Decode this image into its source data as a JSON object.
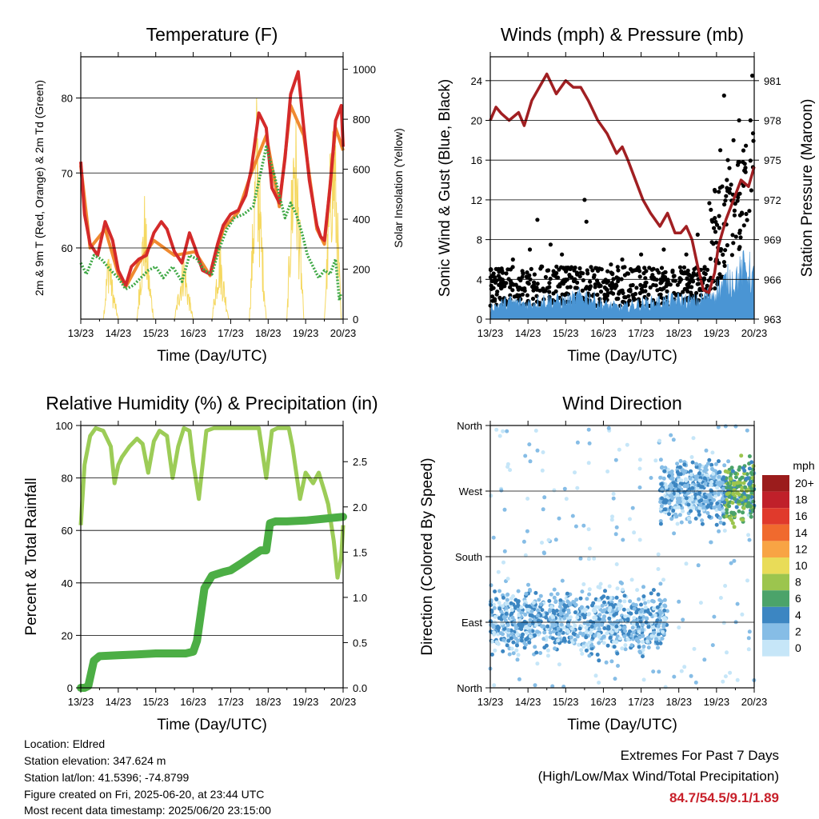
{
  "x_ticks": [
    "13/23",
    "14/23",
    "15/23",
    "16/23",
    "17/23",
    "18/23",
    "19/23",
    "20/23"
  ],
  "charts": {
    "temperature": {
      "title": "Temperature (F)",
      "xlabel": "Time (Day/UTC)",
      "ylabel_left": "2m & 9m T (Red, Orange) & 2m Td (Green)",
      "ylabel_right": "Solar Insolation (Yellow)",
      "yticks_left": [
        "60",
        "70",
        "80"
      ],
      "yticks_right": [
        "0",
        "200",
        "400",
        "600",
        "800",
        "1000"
      ]
    },
    "winds": {
      "title": "Winds (mph) & Pressure (mb)",
      "xlabel": "Time (Day/UTC)",
      "ylabel_left": "Sonic Wind & Gust (Blue, Black)",
      "ylabel_right": "Station Pressure (Maroon)",
      "yticks_left": [
        "0",
        "4",
        "8",
        "12",
        "16",
        "20",
        "24"
      ],
      "yticks_right": [
        "963",
        "966",
        "969",
        "972",
        "975",
        "978",
        "981"
      ]
    },
    "humidity": {
      "title": "Relative Humidity (%) & Precipitation (in)",
      "xlabel": "Time (Day/UTC)",
      "ylabel_left": "Percent & Total Rainfall",
      "yticks_left": [
        "0",
        "20",
        "40",
        "60",
        "80",
        "100"
      ],
      "yticks_right": [
        "0.0",
        "0.5",
        "1.0",
        "1.5",
        "2.0",
        "2.5"
      ]
    },
    "direction": {
      "title": "Wind Direction",
      "xlabel": "Time (Day/UTC)",
      "ylabel_left": "Direction (Colored By Speed)",
      "yticks_left": [
        "North",
        "East",
        "South",
        "West",
        "North"
      ],
      "legend_title": "mph",
      "legend_labels": [
        "20+",
        "18",
        "16",
        "14",
        "12",
        "10",
        "8",
        "6",
        "4",
        "2",
        "0"
      ],
      "legend_colors": [
        "#9b1c1c",
        "#c0202a",
        "#e03a2c",
        "#f06a2e",
        "#f8a444",
        "#e9dc58",
        "#9cc54e",
        "#4ba36a",
        "#3c86c2",
        "#86bde6",
        "#c6e6f8"
      ]
    }
  },
  "info": {
    "location": "Location: Eldred",
    "elevation": "Station elevation: 347.624 m",
    "latlon": "Station lat/lon: 41.5396; -74.8799",
    "created": "Figure created on Fri, 2025-06-20, at 23:44 UTC",
    "recent": "Most recent data timestamp: 2025/06/20 23:15:00"
  },
  "extremes": {
    "line1": "Extremes For Past 7 Days",
    "line2": "(High/Low/Max Wind/Total Precipitation)",
    "values": "84.7/54.5/9.1/1.89"
  },
  "colors": {
    "temp_2m": "#d42a2a",
    "temp_9m": "#f08a30",
    "dewpoint": "#3ea845",
    "solar": "#f5d860",
    "pressure": "#a11f22",
    "wind": "#4a95d4",
    "gust": "#000000",
    "rh": "#9ccc57",
    "precip": "#4cae45"
  },
  "chart_data": [
    {
      "type": "line",
      "title": "Temperature (F)",
      "xlabel": "Time (Day/UTC)",
      "ylabel": "2m & 9m T (Red, Orange) & 2m Td (Green)",
      "ylabel_right": "Solar Insolation (Yellow)",
      "x_unit": "days since 13/23 UTC",
      "xlim": [
        0,
        7
      ],
      "ylim": [
        50.5,
        85.5
      ],
      "ylim_right": [
        0,
        1050
      ],
      "series": [
        {
          "name": "2m T",
          "axis": "left",
          "x": [
            0,
            0.1,
            0.25,
            0.45,
            0.65,
            0.85,
            1.0,
            1.2,
            1.35,
            1.55,
            1.75,
            1.95,
            2.15,
            2.3,
            2.5,
            2.7,
            2.9,
            3.05,
            3.25,
            3.45,
            3.65,
            3.8,
            4.0,
            4.2,
            4.4,
            4.55,
            4.75,
            4.95,
            5.1,
            5.3,
            5.45,
            5.6,
            5.8,
            5.95,
            6.1,
            6.3,
            6.4,
            6.5,
            6.65,
            6.8,
            6.95,
            7.0
          ],
          "y": [
            71.5,
            64.5,
            60.5,
            59.0,
            63.5,
            61.0,
            57.0,
            55.0,
            57.5,
            58.5,
            59.0,
            62.0,
            63.5,
            62.5,
            59.5,
            58.0,
            62.0,
            60.0,
            57.0,
            56.5,
            60.5,
            63.0,
            64.5,
            65.0,
            67.0,
            70.5,
            78.0,
            76.0,
            68.0,
            66.0,
            72.0,
            80.5,
            83.5,
            76.0,
            69.0,
            63.0,
            61.5,
            61.0,
            68.0,
            77.0,
            79.0,
            73.5
          ]
        },
        {
          "name": "9m T",
          "axis": "left",
          "x": [
            0,
            0.25,
            0.65,
            1.0,
            1.2,
            1.55,
            1.95,
            2.5,
            3.05,
            3.45,
            3.8,
            4.2,
            4.55,
            4.95,
            5.3,
            5.6,
            5.95,
            6.3,
            6.5,
            6.8,
            7.0
          ],
          "y": [
            71.0,
            60.0,
            62.5,
            56.5,
            54.8,
            58.0,
            61.0,
            59.0,
            59.5,
            56.3,
            62.5,
            64.8,
            70.0,
            75.0,
            65.5,
            79.0,
            75.0,
            62.5,
            60.5,
            76.0,
            73.0
          ]
        },
        {
          "name": "2m Td",
          "axis": "left",
          "x": [
            0,
            0.15,
            0.35,
            0.55,
            0.8,
            1.0,
            1.2,
            1.4,
            1.6,
            1.8,
            2.0,
            2.2,
            2.45,
            2.7,
            2.9,
            3.1,
            3.3,
            3.5,
            3.7,
            3.9,
            4.1,
            4.35,
            4.6,
            4.8,
            4.95,
            5.15,
            5.3,
            5.45,
            5.6,
            5.75,
            5.9,
            6.05,
            6.2,
            6.35,
            6.5,
            6.65,
            6.8,
            6.9,
            6.95
          ],
          "y": [
            58.0,
            56.5,
            59.0,
            58.5,
            57.0,
            56.0,
            54.5,
            55.0,
            56.0,
            57.0,
            57.5,
            56.0,
            57.5,
            55.5,
            59.0,
            58.5,
            57.0,
            56.5,
            60.0,
            62.5,
            64.0,
            64.5,
            65.5,
            70.0,
            73.5,
            70.0,
            67.0,
            64.0,
            66.0,
            64.5,
            62.0,
            59.0,
            57.5,
            56.0,
            57.0,
            56.5,
            58.5,
            53.0,
            54.0
          ]
        },
        {
          "name": "Solar Insolation",
          "axis": "right",
          "x": [
            0,
            0.6,
            0.75,
            0.85,
            1.0,
            1.5,
            1.7,
            1.8,
            1.95,
            2.5,
            2.75,
            2.85,
            3.0,
            3.5,
            3.7,
            3.8,
            3.95,
            4.5,
            4.7,
            4.8,
            4.95,
            5.5,
            5.7,
            5.8,
            5.95,
            6.5,
            6.7,
            6.78,
            6.95,
            7.0
          ],
          "y": [
            0,
            0,
            350,
            150,
            0,
            0,
            520,
            250,
            0,
            0,
            300,
            150,
            0,
            0,
            350,
            200,
            0,
            0,
            980,
            500,
            0,
            0,
            1000,
            600,
            0,
            0,
            900,
            820,
            0,
            0
          ]
        }
      ]
    },
    {
      "type": "line",
      "title": "Winds (mph) & Pressure (mb)",
      "xlabel": "Time (Day/UTC)",
      "ylabel": "Sonic Wind & Gust (Blue, Black)",
      "ylabel_right": "Station Pressure (Maroon)",
      "x_unit": "days since 13/23 UTC",
      "xlim": [
        0,
        7
      ],
      "ylim": [
        0,
        26.4
      ],
      "ylim_right": [
        963,
        982.8
      ],
      "series": [
        {
          "name": "Station Pressure",
          "axis": "right",
          "x": [
            0,
            0.15,
            0.3,
            0.5,
            0.75,
            0.9,
            1.1,
            1.3,
            1.5,
            1.75,
            2.0,
            2.2,
            2.4,
            2.6,
            2.85,
            3.1,
            3.35,
            3.5,
            3.65,
            3.85,
            4.05,
            4.25,
            4.5,
            4.7,
            4.9,
            5.05,
            5.2,
            5.35,
            5.5,
            5.65,
            5.8,
            5.95,
            6.05,
            6.25,
            6.45,
            6.65,
            6.85,
            7.0
          ],
          "y": [
            978.0,
            979.0,
            978.5,
            978.0,
            978.6,
            977.6,
            979.5,
            980.5,
            981.5,
            980.0,
            981.0,
            980.5,
            980.5,
            979.5,
            978.0,
            977.0,
            975.5,
            976.0,
            975.0,
            973.5,
            972.0,
            971.0,
            970.0,
            971.0,
            969.5,
            969.5,
            970.0,
            969.0,
            967.0,
            965.2,
            965.0,
            966.5,
            968.5,
            970.5,
            972.0,
            973.5,
            973.0,
            974.5
          ]
        },
        {
          "name": "Sonic Wind",
          "axis": "left",
          "role": "fill",
          "x": [
            0,
            0.5,
            1.0,
            1.5,
            2.0,
            2.5,
            3.0,
            3.5,
            4.0,
            4.5,
            5.0,
            5.5,
            6.0,
            6.3,
            6.6,
            6.8,
            7.0
          ],
          "y": [
            1.2,
            1.8,
            1.6,
            2.0,
            1.8,
            2.5,
            1.5,
            1.2,
            1.6,
            1.8,
            2.0,
            1.8,
            3.0,
            4.0,
            4.5,
            5.5,
            4.0
          ]
        },
        {
          "name": "Gust",
          "axis": "left",
          "role": "scatter",
          "x": [
            0.2,
            0.6,
            1.05,
            1.25,
            1.6,
            1.9,
            2.5,
            2.55,
            3.2,
            3.5,
            4.0,
            4.6,
            5.2,
            5.5,
            5.85,
            5.95,
            6.1,
            6.2,
            6.3,
            6.45,
            6.6,
            6.75,
            6.9,
            6.95
          ],
          "y": [
            5.0,
            6.0,
            7.0,
            10.0,
            7.5,
            6.5,
            12.0,
            9.8,
            5.5,
            6.0,
            6.5,
            7.0,
            6.5,
            8.5,
            11.0,
            13.0,
            17.0,
            22.5,
            16.0,
            18.0,
            20.0,
            15.0,
            20.0,
            24.5
          ]
        }
      ]
    },
    {
      "type": "line",
      "title": "Relative Humidity (%) & Precipitation (in)",
      "xlabel": "Time (Day/UTC)",
      "ylabel": "Percent & Total Rainfall",
      "x_unit": "days since 13/23 UTC",
      "xlim": [
        0,
        7
      ],
      "ylim": [
        0,
        100
      ],
      "ylim_right": [
        0,
        2.9
      ],
      "series": [
        {
          "name": "Relative Humidity",
          "axis": "left",
          "x": [
            0,
            0.1,
            0.25,
            0.4,
            0.6,
            0.8,
            0.9,
            1.0,
            1.1,
            1.3,
            1.5,
            1.65,
            1.8,
            1.95,
            2.1,
            2.3,
            2.45,
            2.6,
            2.75,
            2.9,
            3.0,
            3.15,
            3.35,
            3.55,
            3.7,
            3.9,
            4.1,
            4.3,
            4.5,
            4.75,
            4.95,
            5.1,
            5.25,
            5.4,
            5.55,
            5.65,
            5.85,
            6.0,
            6.2,
            6.35,
            6.5,
            6.6,
            6.75,
            6.85,
            6.95,
            7.0
          ],
          "y": [
            62,
            85,
            96,
            99,
            98,
            92,
            78,
            85,
            88,
            92,
            95,
            93,
            82,
            94,
            98,
            96,
            80,
            92,
            99,
            98,
            86,
            72,
            98,
            99,
            99,
            99,
            99,
            99,
            99,
            99,
            80,
            98,
            99,
            99,
            99,
            92,
            72,
            82,
            78,
            82,
            75,
            70,
            56,
            42,
            50,
            62
          ]
        },
        {
          "name": "Total Rainfall",
          "axis": "right",
          "x": [
            0,
            0.1,
            0.2,
            0.35,
            0.5,
            1.0,
            1.5,
            2.0,
            2.5,
            2.8,
            3.0,
            3.1,
            3.3,
            3.5,
            3.8,
            4.0,
            4.3,
            4.55,
            4.8,
            4.95,
            5.05,
            5.2,
            5.5,
            6.0,
            6.5,
            7.0
          ],
          "y": [
            0,
            0,
            0.02,
            0.3,
            0.35,
            0.36,
            0.37,
            0.38,
            0.38,
            0.38,
            0.4,
            0.52,
            1.1,
            1.24,
            1.28,
            1.3,
            1.38,
            1.45,
            1.52,
            1.52,
            1.82,
            1.84,
            1.84,
            1.85,
            1.87,
            1.89
          ]
        }
      ]
    },
    {
      "type": "scatter",
      "title": "Wind Direction",
      "xlabel": "Time (Day/UTC)",
      "ylabel": "Direction (Colored By Speed)",
      "x_unit": "days since 13/23 UTC",
      "xlim": [
        0,
        7
      ],
      "y_unit": "degrees (North=0 at bottom, East=90, South=180, West=270, North=360 at top)",
      "ylim": [
        0,
        360
      ],
      "clusters": [
        {
          "x_range": [
            0,
            4.6
          ],
          "direction_center": 90,
          "speed": "0-4",
          "note": "dense easterly band"
        },
        {
          "x_range": [
            4.6,
            7.0
          ],
          "direction_center": 270,
          "speed": "2-8",
          "note": "westerly band, higher speeds near end"
        }
      ],
      "legend_title": "mph",
      "legend_labels": [
        "20+",
        "18",
        "16",
        "14",
        "12",
        "10",
        "8",
        "6",
        "4",
        "2",
        "0"
      ]
    }
  ]
}
